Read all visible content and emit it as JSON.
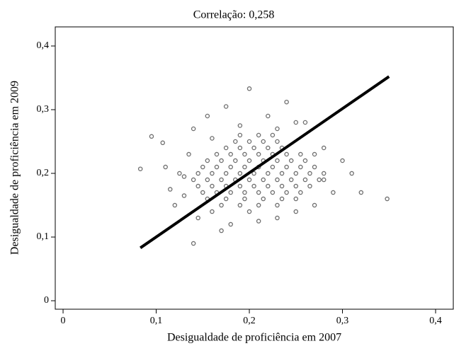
{
  "chart_data": {
    "type": "scatter",
    "title": "Correlação: 0,258",
    "x_label": "Desigualdade de proficiência em 2007",
    "y_label": "Desigualdade de proficiência em 2009",
    "xlim": [
      -0.0084,
      0.419
    ],
    "ylim": [
      -0.0133,
      0.43
    ],
    "xticks": [
      0,
      {
        "value": 0.1,
        "label": "0,1"
      },
      {
        "value": 0.2,
        "label": "0,2"
      },
      {
        "value": 0.3,
        "label": "0,3"
      },
      {
        "value": 0.4,
        "label": "0,4"
      }
    ],
    "yticks": [
      0,
      {
        "value": 0.1,
        "label": "0,1"
      },
      {
        "value": 0.2,
        "label": "0,2"
      },
      {
        "value": 0.3,
        "label": "0,3"
      },
      {
        "value": 0.4,
        "label": "0,4"
      }
    ],
    "series": [
      {
        "style": "points",
        "color": "#6e6e6e",
        "x": [
          0.17,
          0.19,
          0.21,
          0.23,
          0.155,
          0.175,
          0.195,
          0.215,
          0.235,
          0.25,
          0.15,
          0.165,
          0.18,
          0.195,
          0.21,
          0.225,
          0.24,
          0.255,
          0.145,
          0.16,
          0.175,
          0.19,
          0.205,
          0.22,
          0.235,
          0.25,
          0.265,
          0.14,
          0.155,
          0.17,
          0.185,
          0.2,
          0.215,
          0.23,
          0.245,
          0.26,
          0.275,
          0.145,
          0.16,
          0.175,
          0.19,
          0.205,
          0.22,
          0.235,
          0.25,
          0.265,
          0.28,
          0.15,
          0.165,
          0.18,
          0.195,
          0.21,
          0.225,
          0.24,
          0.255,
          0.27,
          0.155,
          0.17,
          0.185,
          0.2,
          0.215,
          0.23,
          0.245,
          0.26,
          0.165,
          0.18,
          0.195,
          0.21,
          0.225,
          0.24,
          0.255,
          0.175,
          0.19,
          0.205,
          0.22,
          0.235,
          0.185,
          0.2,
          0.215,
          0.23,
          0.19,
          0.21,
          0.225,
          0.083,
          0.095,
          0.107,
          0.11,
          0.115,
          0.12,
          0.125,
          0.13,
          0.135,
          0.14,
          0.145,
          0.155,
          0.16,
          0.17,
          0.175,
          0.18,
          0.2,
          0.21,
          0.22,
          0.23,
          0.24,
          0.25,
          0.26,
          0.27,
          0.28,
          0.29,
          0.3,
          0.31,
          0.32,
          0.348,
          0.14,
          0.25,
          0.28,
          0.13,
          0.16,
          0.2,
          0.19,
          0.23,
          0.27
        ],
        "values": [
          0.15,
          0.15,
          0.15,
          0.15,
          0.16,
          0.16,
          0.16,
          0.16,
          0.16,
          0.16,
          0.17,
          0.17,
          0.17,
          0.17,
          0.17,
          0.17,
          0.17,
          0.17,
          0.18,
          0.18,
          0.18,
          0.18,
          0.18,
          0.18,
          0.18,
          0.18,
          0.18,
          0.19,
          0.19,
          0.19,
          0.19,
          0.19,
          0.19,
          0.19,
          0.19,
          0.19,
          0.19,
          0.2,
          0.2,
          0.2,
          0.2,
          0.2,
          0.2,
          0.2,
          0.2,
          0.2,
          0.2,
          0.21,
          0.21,
          0.21,
          0.21,
          0.21,
          0.21,
          0.21,
          0.21,
          0.21,
          0.22,
          0.22,
          0.22,
          0.22,
          0.22,
          0.22,
          0.22,
          0.22,
          0.23,
          0.23,
          0.23,
          0.23,
          0.23,
          0.23,
          0.23,
          0.24,
          0.24,
          0.24,
          0.24,
          0.24,
          0.25,
          0.25,
          0.25,
          0.25,
          0.26,
          0.26,
          0.26,
          0.207,
          0.258,
          0.248,
          0.21,
          0.175,
          0.15,
          0.2,
          0.165,
          0.23,
          0.27,
          0.13,
          0.29,
          0.255,
          0.11,
          0.305,
          0.12,
          0.333,
          0.125,
          0.29,
          0.13,
          0.312,
          0.14,
          0.28,
          0.15,
          0.24,
          0.17,
          0.22,
          0.2,
          0.17,
          0.16,
          0.09,
          0.28,
          0.19,
          0.195,
          0.14,
          0.14,
          0.275,
          0.27,
          0.23
        ]
      },
      {
        "style": "line",
        "color": "#000000",
        "x": [
          0.083,
          0.35
        ],
        "values": [
          0.083,
          0.352
        ]
      }
    ]
  }
}
